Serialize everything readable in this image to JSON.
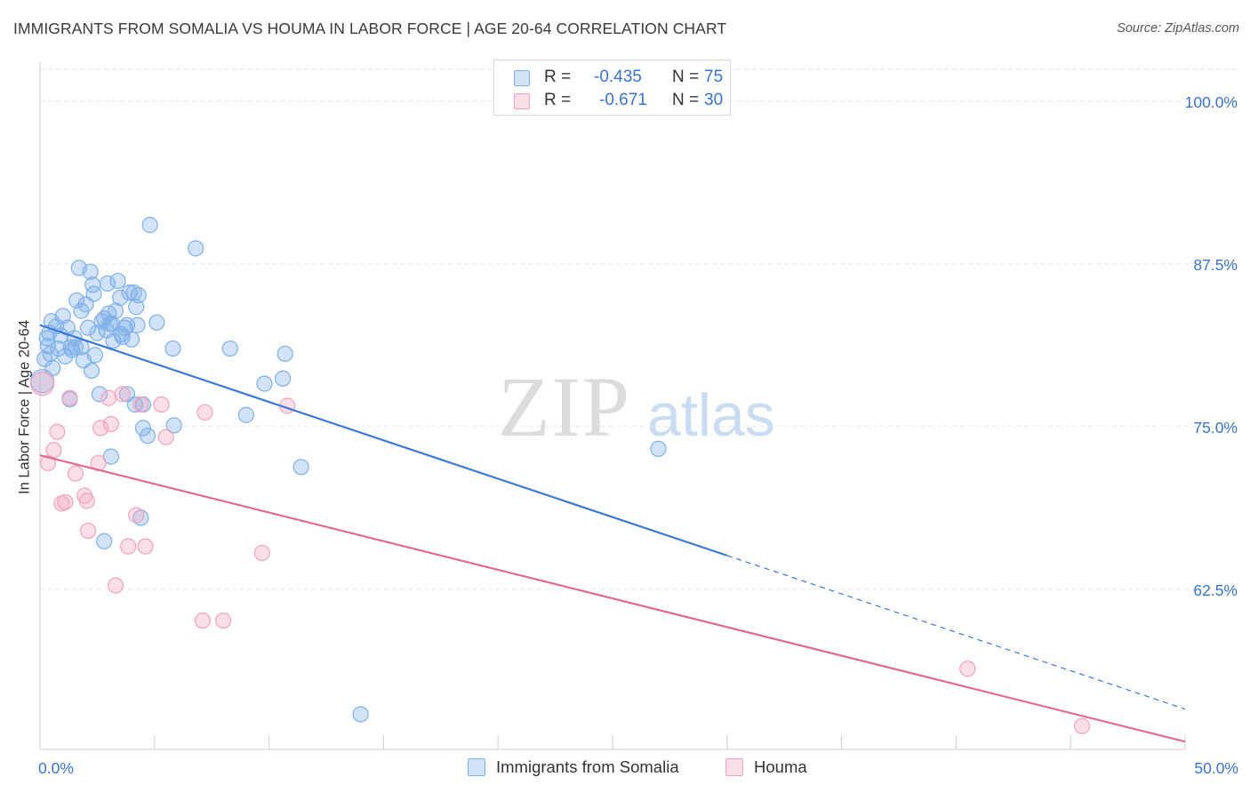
{
  "header": {
    "title": "IMMIGRANTS FROM SOMALIA VS HOUMA IN LABOR FORCE | AGE 20-64 CORRELATION CHART",
    "source": "Source: ZipAtlas.com"
  },
  "watermark": {
    "zip": "ZIP",
    "atlas": "atlas"
  },
  "legend": {
    "rows": [
      {
        "r_label": "R =",
        "r_value": "-0.435",
        "n_label": "N =",
        "n_value": "75",
        "color": "#7fb0e8"
      },
      {
        "r_label": "R =",
        "r_value": "-0.671",
        "n_label": "N =",
        "n_value": "30",
        "color": "#f1a3bd"
      }
    ]
  },
  "bottom_legend": {
    "items": [
      {
        "label": "Immigrants from Somalia",
        "color": "#7fb0e8"
      },
      {
        "label": "Houma",
        "color": "#f1a3bd"
      }
    ]
  },
  "chart_data": {
    "type": "scatter",
    "title": "IMMIGRANTS FROM SOMALIA VS HOUMA IN LABOR FORCE | AGE 20-64 CORRELATION CHART",
    "xlabel": "",
    "ylabel": "In Labor Force | Age 20-64",
    "xlim": [
      0,
      50
    ],
    "ylim": [
      50.2,
      103
    ],
    "x_tick_labels": [
      "0.0%",
      "50.0%"
    ],
    "y_ticks": [
      62.5,
      75.0,
      87.5,
      100.0
    ],
    "y_tick_labels": [
      "62.5%",
      "75.0%",
      "87.5%",
      "100.0%"
    ],
    "series": [
      {
        "name": "Immigrants from Somalia",
        "color": "#3b78d6",
        "marker_fill": "rgba(127,176,232,0.35)",
        "marker_stroke": "#7fb0e8",
        "points": [
          [
            0.2,
            80.2
          ],
          [
            0.3,
            81.8
          ],
          [
            0.35,
            81.2
          ],
          [
            0.4,
            82.2
          ],
          [
            0.45,
            80.6
          ],
          [
            0.5,
            83.1
          ],
          [
            0.55,
            79.5
          ],
          [
            0.7,
            82.7
          ],
          [
            0.8,
            81.0
          ],
          [
            0.9,
            82.0
          ],
          [
            1.0,
            83.5
          ],
          [
            1.1,
            80.4
          ],
          [
            1.2,
            82.6
          ],
          [
            1.3,
            77.1
          ],
          [
            1.4,
            80.9
          ],
          [
            1.5,
            81.8
          ],
          [
            1.55,
            81.1
          ],
          [
            1.6,
            84.7
          ],
          [
            1.7,
            87.2
          ],
          [
            1.8,
            83.9
          ],
          [
            1.8,
            81.1
          ],
          [
            1.9,
            80.1
          ],
          [
            2.0,
            84.4
          ],
          [
            2.1,
            82.6
          ],
          [
            2.2,
            86.9
          ],
          [
            2.25,
            79.3
          ],
          [
            2.3,
            85.9
          ],
          [
            2.35,
            85.2
          ],
          [
            2.4,
            80.5
          ],
          [
            2.5,
            82.2
          ],
          [
            2.6,
            77.5
          ],
          [
            2.7,
            83.1
          ],
          [
            2.8,
            83.3
          ],
          [
            2.9,
            82.4
          ],
          [
            2.95,
            86.0
          ],
          [
            3.0,
            83.7
          ],
          [
            3.05,
            82.9
          ],
          [
            3.1,
            72.7
          ],
          [
            3.15,
            82.9
          ],
          [
            3.2,
            81.6
          ],
          [
            3.3,
            83.9
          ],
          [
            3.4,
            86.2
          ],
          [
            3.5,
            84.9
          ],
          [
            3.55,
            82.1
          ],
          [
            3.6,
            81.9
          ],
          [
            3.7,
            82.6
          ],
          [
            3.8,
            82.8
          ],
          [
            3.8,
            77.5
          ],
          [
            3.9,
            85.3
          ],
          [
            4.0,
            81.7
          ],
          [
            4.1,
            85.3
          ],
          [
            4.15,
            76.7
          ],
          [
            4.2,
            84.2
          ],
          [
            4.3,
            85.1
          ],
          [
            4.25,
            82.8
          ],
          [
            4.4,
            68.0
          ],
          [
            4.5,
            76.7
          ],
          [
            4.5,
            74.9
          ],
          [
            4.7,
            74.3
          ],
          [
            4.8,
            90.5
          ],
          [
            5.1,
            83.0
          ],
          [
            5.8,
            81.0
          ],
          [
            5.85,
            75.1
          ],
          [
            6.8,
            88.7
          ],
          [
            8.3,
            81.0
          ],
          [
            9.0,
            75.9
          ],
          [
            9.8,
            78.3
          ],
          [
            10.6,
            78.7
          ],
          [
            10.7,
            80.6
          ],
          [
            11.4,
            71.9
          ],
          [
            14.0,
            52.9
          ],
          [
            27.0,
            73.3
          ],
          [
            2.8,
            66.2
          ],
          [
            0.1,
            78.5
          ],
          [
            1.35,
            81.1
          ]
        ],
        "trend": {
          "x0": 0,
          "y0": 82.8,
          "x_solid_end": 30,
          "x1": 50,
          "y1": 53.3
        }
      },
      {
        "name": "Houma",
        "color": "#e06b93",
        "marker_fill": "rgba(241,163,189,0.35)",
        "marker_stroke": "#f1a3bd",
        "points": [
          [
            0.1,
            78.3
          ],
          [
            0.35,
            72.2
          ],
          [
            0.6,
            73.2
          ],
          [
            0.75,
            74.6
          ],
          [
            0.95,
            69.1
          ],
          [
            1.1,
            69.2
          ],
          [
            1.3,
            77.2
          ],
          [
            1.55,
            71.4
          ],
          [
            1.95,
            69.7
          ],
          [
            2.05,
            69.3
          ],
          [
            2.1,
            67.0
          ],
          [
            2.55,
            72.2
          ],
          [
            2.65,
            74.9
          ],
          [
            3.0,
            77.2
          ],
          [
            3.1,
            75.2
          ],
          [
            3.3,
            62.8
          ],
          [
            3.6,
            77.5
          ],
          [
            3.85,
            65.8
          ],
          [
            4.2,
            68.2
          ],
          [
            4.4,
            76.7
          ],
          [
            4.6,
            65.8
          ],
          [
            5.3,
            76.7
          ],
          [
            5.5,
            74.2
          ],
          [
            7.1,
            60.1
          ],
          [
            7.2,
            76.1
          ],
          [
            8.0,
            60.1
          ],
          [
            9.7,
            65.3
          ],
          [
            10.8,
            76.6
          ],
          [
            40.5,
            56.4
          ],
          [
            45.5,
            52.0
          ]
        ],
        "trend": {
          "x0": 0,
          "y0": 72.8,
          "x_solid_end": 50,
          "x1": 50,
          "y1": 50.8
        }
      }
    ]
  }
}
